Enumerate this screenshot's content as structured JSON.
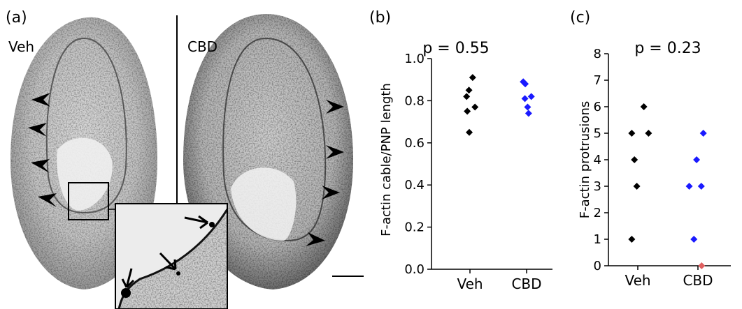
{
  "panels": {
    "a": {
      "label": "(a)",
      "left_image_label": "Veh",
      "right_image_label": "CBD"
    },
    "b": {
      "label": "(b)"
    },
    "c": {
      "label": "(c)"
    }
  },
  "colors": {
    "veh": "#000000",
    "cbd": "#1a1aff",
    "outlier": "#e06060"
  },
  "chart_data": [
    {
      "type": "scatter",
      "panel": "b",
      "annotation": "p = 0.55",
      "ylabel": "F-actin cable/PNP length",
      "xlabel": "",
      "categories": [
        "Veh",
        "CBD"
      ],
      "ylim": [
        0.0,
        1.0
      ],
      "yticks": [
        "0.0",
        "0.2",
        "0.4",
        "0.6",
        "0.8",
        "1.0"
      ],
      "series": [
        {
          "category": "Veh",
          "points": [
            {
              "jitter": -0.1,
              "y": 0.82
            },
            {
              "jitter": -0.03,
              "y": 0.85
            },
            {
              "jitter": 0.08,
              "y": 0.91
            },
            {
              "jitter": -0.08,
              "y": 0.75
            },
            {
              "jitter": 0.15,
              "y": 0.77
            },
            {
              "jitter": -0.02,
              "y": 0.65
            }
          ]
        },
        {
          "category": "CBD",
          "points": [
            {
              "jitter": -0.1,
              "y": 0.89
            },
            {
              "jitter": -0.04,
              "y": 0.88
            },
            {
              "jitter": 0.14,
              "y": 0.82
            },
            {
              "jitter": -0.05,
              "y": 0.81
            },
            {
              "jitter": 0.03,
              "y": 0.77
            },
            {
              "jitter": 0.06,
              "y": 0.74
            }
          ]
        }
      ],
      "grid": false
    },
    {
      "type": "scatter",
      "panel": "c",
      "annotation": "p = 0.23",
      "ylabel": "F-actin protrusions",
      "xlabel": "",
      "categories": [
        "Veh",
        "CBD"
      ],
      "ylim": [
        0,
        8
      ],
      "yticks": [
        "0",
        "1",
        "2",
        "3",
        "4",
        "5",
        "6",
        "7",
        "8"
      ],
      "series": [
        {
          "category": "Veh",
          "points": [
            {
              "jitter": -0.18,
              "y": 5
            },
            {
              "jitter": 0.18,
              "y": 6
            },
            {
              "jitter": 0.32,
              "y": 5
            },
            {
              "jitter": -0.1,
              "y": 4
            },
            {
              "jitter": -0.03,
              "y": 3
            },
            {
              "jitter": -0.18,
              "y": 1
            }
          ]
        },
        {
          "category": "CBD",
          "points": [
            {
              "jitter": -0.04,
              "y": 4
            },
            {
              "jitter": 0.16,
              "y": 5
            },
            {
              "jitter": -0.26,
              "y": 3
            },
            {
              "jitter": 0.1,
              "y": 3
            },
            {
              "jitter": -0.12,
              "y": 1
            },
            {
              "jitter": 0.11,
              "y": 0,
              "outlier": true
            }
          ]
        }
      ],
      "grid": false
    }
  ]
}
